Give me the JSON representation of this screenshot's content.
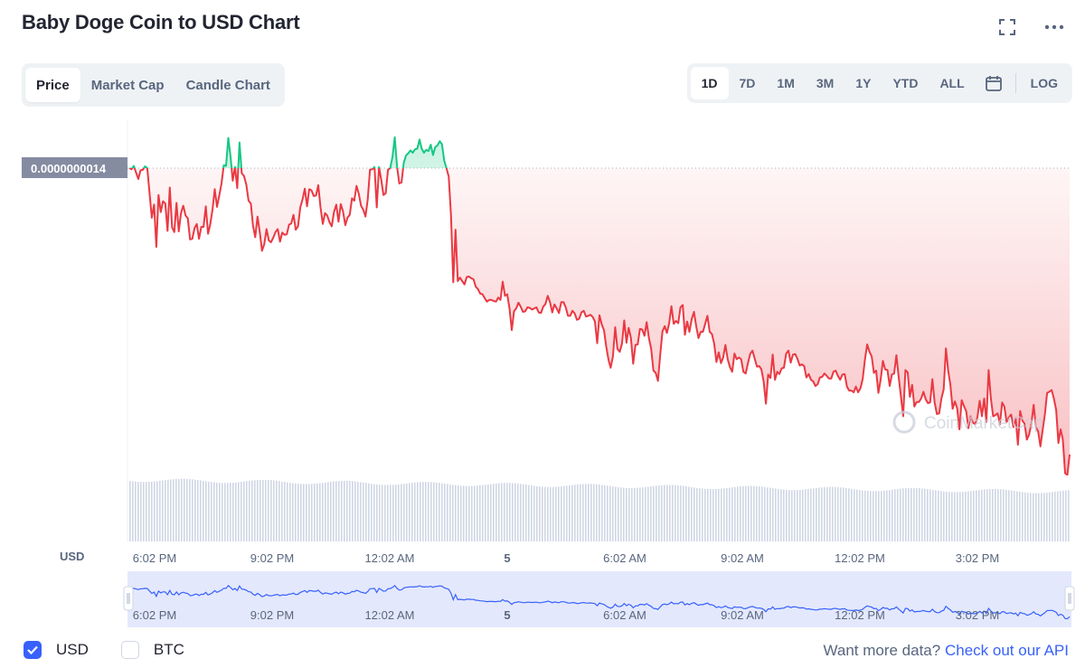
{
  "header": {
    "title": "Baby Doge Coin to USD Chart"
  },
  "icons": {
    "fullscreen": "fullscreen-icon",
    "more": "more-options-icon",
    "calendar": "calendar-icon"
  },
  "tabs": [
    {
      "label": "Price",
      "active": true
    },
    {
      "label": "Market Cap",
      "active": false
    },
    {
      "label": "Candle Chart",
      "active": false
    }
  ],
  "ranges": [
    {
      "label": "1D",
      "active": true
    },
    {
      "label": "7D",
      "active": false
    },
    {
      "label": "1M",
      "active": false
    },
    {
      "label": "3M",
      "active": false
    },
    {
      "label": "1Y",
      "active": false
    },
    {
      "label": "YTD",
      "active": false
    },
    {
      "label": "ALL",
      "active": false
    }
  ],
  "log_label": "LOG",
  "chart_data": {
    "type": "line",
    "reference_value_label": "0.0000000014",
    "y_axis_unit": "USD",
    "x_tick_labels": [
      "6:02 PM",
      "9:02 PM",
      "12:02 AM",
      "5",
      "6:02 AM",
      "9:02 AM",
      "12:02 PM",
      "3:02 PM"
    ],
    "watermark": "CoinMarketCap",
    "colors": {
      "up": "#16c784",
      "down": "#ea3943",
      "navigator": "#3861fb"
    },
    "series": [
      {
        "values": [
          1.4,
          1.398,
          1.404,
          1.392,
          1.381,
          1.396,
          1.397,
          1.403,
          1.4,
          1.356,
          1.313,
          1.336,
          1.262,
          1.353,
          1.323,
          1.342,
          1.338,
          1.29,
          1.366,
          1.296,
          1.288,
          1.339,
          1.289,
          1.321,
          1.334,
          1.317,
          1.312,
          1.275,
          1.276,
          1.295,
          1.302,
          1.276,
          1.297,
          1.297,
          1.333,
          1.285,
          1.302,
          1.328,
          1.363,
          1.332,
          1.352,
          1.373,
          1.405,
          1.404,
          1.453,
          1.42,
          1.378,
          1.402,
          1.365,
          1.445,
          1.391,
          1.386,
          1.371,
          1.343,
          1.338,
          1.299,
          1.279,
          1.315,
          1.288,
          1.255,
          1.267,
          1.293,
          1.273,
          1.27,
          1.278,
          1.288,
          1.293,
          1.271,
          1.287,
          1.283,
          1.284,
          1.301,
          1.303,
          1.318,
          1.292,
          1.298,
          1.331,
          1.345,
          1.364,
          1.333,
          1.363,
          1.361,
          1.351,
          1.352,
          1.37,
          1.331,
          1.302,
          1.321,
          1.317,
          1.305,
          1.298,
          1.323,
          1.336,
          1.306,
          1.337,
          1.324,
          1.3,
          1.313,
          1.318,
          1.347,
          1.343,
          1.369,
          1.355,
          1.334,
          1.327,
          1.315,
          1.345,
          1.397,
          1.398,
          1.402,
          1.331,
          1.402,
          1.379,
          1.353,
          1.356,
          1.397,
          1.4,
          1.42,
          1.454,
          1.403,
          1.373,
          1.375,
          1.409,
          1.422,
          1.426,
          1.431,
          1.427,
          1.433,
          1.434,
          1.45,
          1.434,
          1.427,
          1.432,
          1.43,
          1.441,
          1.423,
          1.437,
          1.44,
          1.447,
          1.442,
          1.413,
          1.4,
          1.385,
          1.317,
          1.2,
          1.292,
          1.202,
          1.208,
          1.202,
          1.196,
          1.209,
          1.21,
          1.207,
          1.205,
          1.192,
          1.188,
          1.18,
          1.179,
          1.172,
          1.166,
          1.169,
          1.169,
          1.167,
          1.166,
          1.173,
          1.169,
          1.201,
          1.176,
          1.179,
          1.154,
          1.116,
          1.149,
          1.154,
          1.164,
          1.157,
          1.148,
          1.149,
          1.156,
          1.155,
          1.152,
          1.154,
          1.156,
          1.147,
          1.146,
          1.157,
          1.162,
          1.176,
          1.165,
          1.147,
          1.161,
          1.154,
          1.146,
          1.165,
          1.165,
          1.156,
          1.141,
          1.141,
          1.15,
          1.145,
          1.134,
          1.136,
          1.147,
          1.15,
          1.14,
          1.141,
          1.143,
          1.139,
          1.131,
          1.093,
          1.142,
          1.126,
          1.116,
          1.087,
          1.064,
          1.05,
          1.07,
          1.121,
          1.083,
          1.078,
          1.092,
          1.133,
          1.094,
          1.12,
          1.102,
          1.057,
          1.09,
          1.091,
          1.118,
          1.117,
          1.106,
          1.13,
          1.102,
          1.083,
          1.045,
          1.041,
          1.027,
          1.073,
          1.114,
          1.123,
          1.111,
          1.128,
          1.158,
          1.127,
          1.132,
          1.128,
          1.156,
          1.16,
          1.108,
          1.131,
          1.113,
          1.135,
          1.148,
          1.123,
          1.102,
          1.113,
          1.113,
          1.127,
          1.141,
          1.113,
          1.109,
          1.092,
          1.06,
          1.077,
          1.058,
          1.068,
          1.09,
          1.065,
          1.051,
          1.043,
          1.075,
          1.065,
          1.068,
          1.065,
          1.043,
          1.04,
          1.058,
          1.074,
          1.08,
          1.066,
          1.052,
          1.053,
          1.047,
          1.026,
          0.987,
          1.038,
          1.032,
          1.073,
          1.029,
          1.043,
          1.039,
          1.049,
          1.05,
          1.075,
          1.08,
          1.059,
          1.073,
          1.074,
          1.066,
          1.054,
          1.056,
          1.053,
          1.033,
          1.039,
          1.029,
          1.026,
          1.018,
          1.021,
          1.033,
          1.034,
          1.04,
          1.036,
          1.031,
          1.031,
          1.043,
          1.045,
          1.036,
          1.029,
          1.038,
          1.039,
          1.017,
          1.01,
          1.01,
          1.007,
          1.017,
          1.007,
          1.014,
          1.03,
          1.064,
          1.091,
          1.078,
          1.07,
          1.041,
          1.045,
          1.006,
          1.029,
          1.062,
          1.047,
          1.046,
          1.018,
          1.038,
          1.04,
          1.072,
          1.034,
          1.0,
          0.965,
          1.046,
          1.042,
          0.999,
          1.02,
          0.982,
          0.99,
          0.99,
          0.996,
          1.008,
          0.995,
          0.988,
          0.989,
          1.03,
          0.989,
          0.969,
          0.97,
          0.996,
          1.012,
          1.084,
          1.046,
          1.02,
          0.978,
          0.991,
          0.979,
          0.942,
          0.993,
          0.983,
          0.974,
          0.944,
          0.965,
          0.954,
          0.951,
          0.963,
          0.992,
          0.965,
          0.996,
          0.955,
          1.046,
          0.996,
          0.965,
          0.967,
          0.97,
          0.951,
          0.989,
          0.982,
          0.955,
          0.963,
          0.968,
          0.946,
          0.962,
          0.915,
          0.974,
          0.957,
          0.952,
          0.924,
          0.933,
          0.952,
          0.985,
          0.946,
          0.938,
          0.912,
          0.94,
          0.968,
          1.006,
          1.008,
          1.011,
          0.996,
          0.976,
          0.918,
          0.942,
          0.924,
          0.865,
          0.862,
          0.898
        ]
      }
    ]
  },
  "footer": {
    "currencies": [
      {
        "label": "USD",
        "checked": true
      },
      {
        "label": "BTC",
        "checked": false
      }
    ],
    "more_text": "Want more data?",
    "api_link": "Check out our API"
  }
}
